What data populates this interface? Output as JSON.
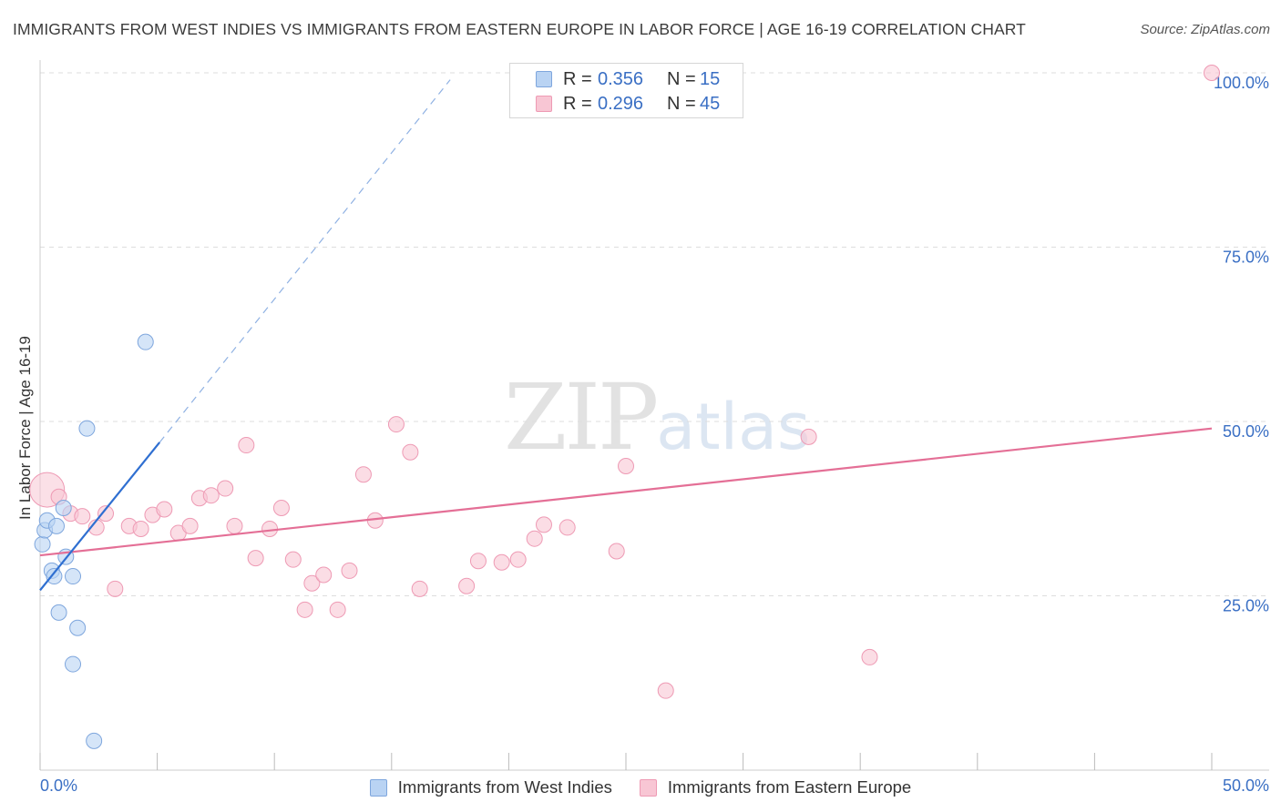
{
  "header": {
    "title": "IMMIGRANTS FROM WEST INDIES VS IMMIGRANTS FROM EASTERN EUROPE IN LABOR FORCE | AGE 16-19 CORRELATION CHART",
    "source": "Source: ZipAtlas.com"
  },
  "watermark": {
    "zip": "ZIP",
    "atlas": "atlas"
  },
  "legend": {
    "r_label": "R =",
    "n_label": "N =",
    "series_a": {
      "r": "0.356",
      "n": "15",
      "name": "Immigrants from West Indies"
    },
    "series_b": {
      "r": "0.296",
      "n": "45",
      "name": "Immigrants from Eastern Europe"
    }
  },
  "colors": {
    "series_a_fill": "#b9d3f3",
    "series_a_stroke": "#7ea6dd",
    "series_a_line": "#2f6fd1",
    "series_b_fill": "#f8c6d4",
    "series_b_stroke": "#ee9ab4",
    "series_b_line": "#e46f96",
    "tick_label": "#3a6fc4",
    "grid": "#dddddd"
  },
  "chart_data": {
    "type": "scatter",
    "title": "IMMIGRANTS FROM WEST INDIES VS IMMIGRANTS FROM EASTERN EUROPE IN LABOR FORCE | AGE 16-19 CORRELATION CHART",
    "xlabel": "",
    "ylabel": "In Labor Force | Age 16-19",
    "xlim": [
      0,
      50
    ],
    "ylim": [
      0,
      100
    ],
    "x_tick_labels": [
      "0.0%",
      "50.0%"
    ],
    "y_ticks": [
      25,
      50,
      75,
      100
    ],
    "y_tick_labels": [
      "25.0%",
      "50.0%",
      "75.0%",
      "100.0%"
    ],
    "grid": true,
    "series": [
      {
        "name": "Immigrants from West Indies",
        "r": 0.356,
        "n": 15,
        "points": [
          [
            0.1,
            32.4
          ],
          [
            0.2,
            34.4
          ],
          [
            0.3,
            35.8
          ],
          [
            0.5,
            28.6
          ],
          [
            0.6,
            27.8
          ],
          [
            0.7,
            35.0
          ],
          [
            0.8,
            22.6
          ],
          [
            1.0,
            37.6
          ],
          [
            1.1,
            30.6
          ],
          [
            1.4,
            15.2
          ],
          [
            1.4,
            27.8
          ],
          [
            1.6,
            20.4
          ],
          [
            2.0,
            49.0
          ],
          [
            2.3,
            4.2
          ],
          [
            4.5,
            61.4
          ]
        ],
        "trend": {
          "x": [
            0,
            5.1
          ],
          "y": [
            25.8,
            47.0
          ]
        },
        "trend_extension": {
          "x": [
            5.1,
            17.5
          ],
          "y": [
            47.0,
            99.0
          ]
        }
      },
      {
        "name": "Immigrants from Eastern Europe",
        "r": 0.296,
        "n": 45,
        "points": [
          [
            0.3,
            40.2
          ],
          [
            0.8,
            39.2
          ],
          [
            1.3,
            36.8
          ],
          [
            1.8,
            36.4
          ],
          [
            2.4,
            34.8
          ],
          [
            2.8,
            36.8
          ],
          [
            3.2,
            26.0
          ],
          [
            3.8,
            35.0
          ],
          [
            4.3,
            34.6
          ],
          [
            4.8,
            36.6
          ],
          [
            5.3,
            37.4
          ],
          [
            5.9,
            34.0
          ],
          [
            6.4,
            35.0
          ],
          [
            6.8,
            39.0
          ],
          [
            7.3,
            39.4
          ],
          [
            7.9,
            40.4
          ],
          [
            8.3,
            35.0
          ],
          [
            8.8,
            46.6
          ],
          [
            9.2,
            30.4
          ],
          [
            9.8,
            34.6
          ],
          [
            10.3,
            37.6
          ],
          [
            10.8,
            30.2
          ],
          [
            11.3,
            23.0
          ],
          [
            11.6,
            26.8
          ],
          [
            12.1,
            28.0
          ],
          [
            12.7,
            23.0
          ],
          [
            13.2,
            28.6
          ],
          [
            13.8,
            42.4
          ],
          [
            14.3,
            35.8
          ],
          [
            15.2,
            49.6
          ],
          [
            15.8,
            45.6
          ],
          [
            16.2,
            26.0
          ],
          [
            18.2,
            26.4
          ],
          [
            18.7,
            30.0
          ],
          [
            19.7,
            29.8
          ],
          [
            20.4,
            30.2
          ],
          [
            21.1,
            33.2
          ],
          [
            21.5,
            35.2
          ],
          [
            22.5,
            34.8
          ],
          [
            24.6,
            31.4
          ],
          [
            25.0,
            43.6
          ],
          [
            26.7,
            11.4
          ],
          [
            32.8,
            47.8
          ],
          [
            35.4,
            16.2
          ],
          [
            50.0,
            100.0
          ]
        ],
        "trend": {
          "x": [
            0,
            50
          ],
          "y": [
            30.8,
            49.0
          ]
        }
      }
    ]
  }
}
